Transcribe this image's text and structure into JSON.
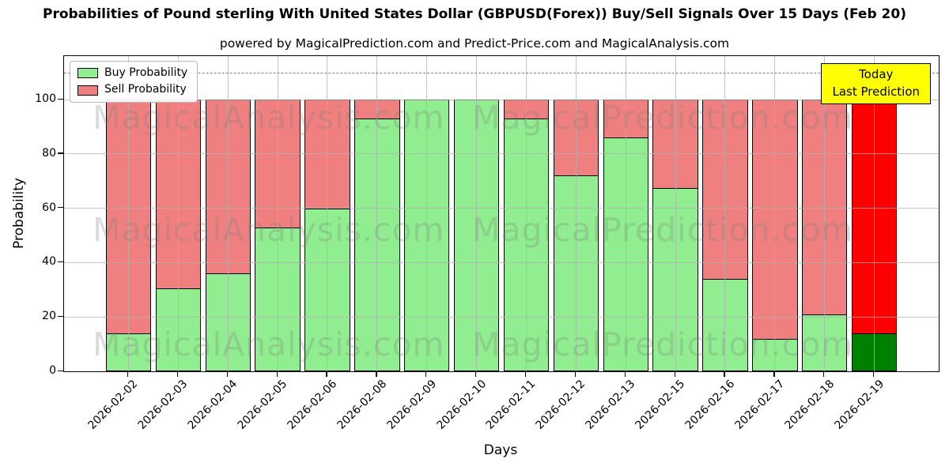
{
  "title": "Probabilities of Pound sterling With United States Dollar (GBPUSD(Forex)) Buy/Sell Signals Over 15 Days (Feb 20)",
  "subtitle": "powered by MagicalPrediction.com and Predict-Price.com and MagicalAnalysis.com",
  "today_box": {
    "line1": "Today",
    "line2": "Last Prediction",
    "bg": "#ffff00"
  },
  "watermarks": {
    "left": "MagicalAnalysis.com",
    "right": "MagicalPrediction.com"
  },
  "colors": {
    "buy": "#90ee90",
    "sell": "#f08080",
    "today_buy": "#008000",
    "today_sell": "#ff0000",
    "edge": "#000000",
    "grid": "#b0b0b0",
    "dashed_line": "#7f7f7f",
    "today_box_bg": "#ffff00"
  },
  "chart_data": {
    "type": "bar",
    "stacked": true,
    "title": "Probabilities of Pound sterling With United States Dollar (GBPUSD(Forex)) Buy/Sell Signals Over 15 Days (Feb 20)",
    "subtitle": "powered by MagicalPrediction.com and Predict-Price.com and MagicalAnalysis.com",
    "xlabel": "Days",
    "ylabel": "Probability",
    "categories": [
      "2026-02-02",
      "2026-02-03",
      "2026-02-04",
      "2026-02-05",
      "2026-02-06",
      "2026-02-08",
      "2026-02-09",
      "2026-02-10",
      "2026-02-11",
      "2026-02-12",
      "2026-02-13",
      "2026-02-15",
      "2026-02-16",
      "2026-02-17",
      "2026-02-18",
      "2026-02-19"
    ],
    "series": [
      {
        "name": "Buy Probability",
        "color": "#90ee90",
        "values": [
          14,
          30.5,
          36,
          53,
          60,
          93,
          100,
          100,
          93,
          72,
          86,
          67.5,
          34,
          12,
          21,
          14
        ]
      },
      {
        "name": "Sell Probability",
        "color": "#f08080",
        "values": [
          86,
          69.5,
          64,
          47,
          40,
          7,
          0,
          0,
          7,
          28,
          14,
          32.5,
          66,
          88,
          79,
          86
        ]
      }
    ],
    "today_index": 15,
    "today_colors": {
      "buy": "#008000",
      "sell": "#ff0000"
    },
    "yticks": [
      0,
      20,
      40,
      60,
      80,
      100
    ],
    "ylim": [
      0,
      116
    ],
    "dashed_line_y": 110,
    "grid": true,
    "legend_position": "upper left"
  }
}
